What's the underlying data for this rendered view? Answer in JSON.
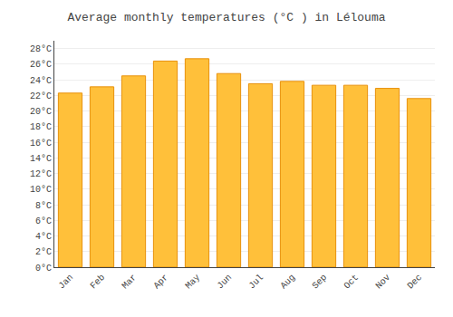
{
  "chart_data": {
    "type": "bar",
    "title": "Average monthly temperatures (°C ) in Lélouma",
    "categories": [
      "Jan",
      "Feb",
      "Mar",
      "Apr",
      "May",
      "Jun",
      "Jul",
      "Aug",
      "Sep",
      "Oct",
      "Nov",
      "Dec"
    ],
    "values": [
      22.3,
      23.1,
      24.5,
      26.4,
      26.7,
      24.8,
      23.5,
      23.8,
      23.3,
      23.3,
      22.9,
      21.6
    ],
    "color": "#FFC03A",
    "ylim": [
      0,
      29
    ],
    "yticks": [
      {
        "value": 0,
        "label": "0°C"
      },
      {
        "value": 2,
        "label": "2°C"
      },
      {
        "value": 4,
        "label": "4°C"
      },
      {
        "value": 6,
        "label": "6°C"
      },
      {
        "value": 8,
        "label": "8°C"
      },
      {
        "value": 10,
        "label": "10°C"
      },
      {
        "value": 12,
        "label": "12°C"
      },
      {
        "value": 14,
        "label": "14°C"
      },
      {
        "value": 16,
        "label": "16°C"
      },
      {
        "value": 18,
        "label": "18°C"
      },
      {
        "value": 20,
        "label": "20°C"
      },
      {
        "value": 22,
        "label": "22°C"
      },
      {
        "value": 24,
        "label": "24°C"
      },
      {
        "value": 26,
        "label": "26°C"
      },
      {
        "value": 28,
        "label": "28°C"
      }
    ],
    "grid": true
  }
}
